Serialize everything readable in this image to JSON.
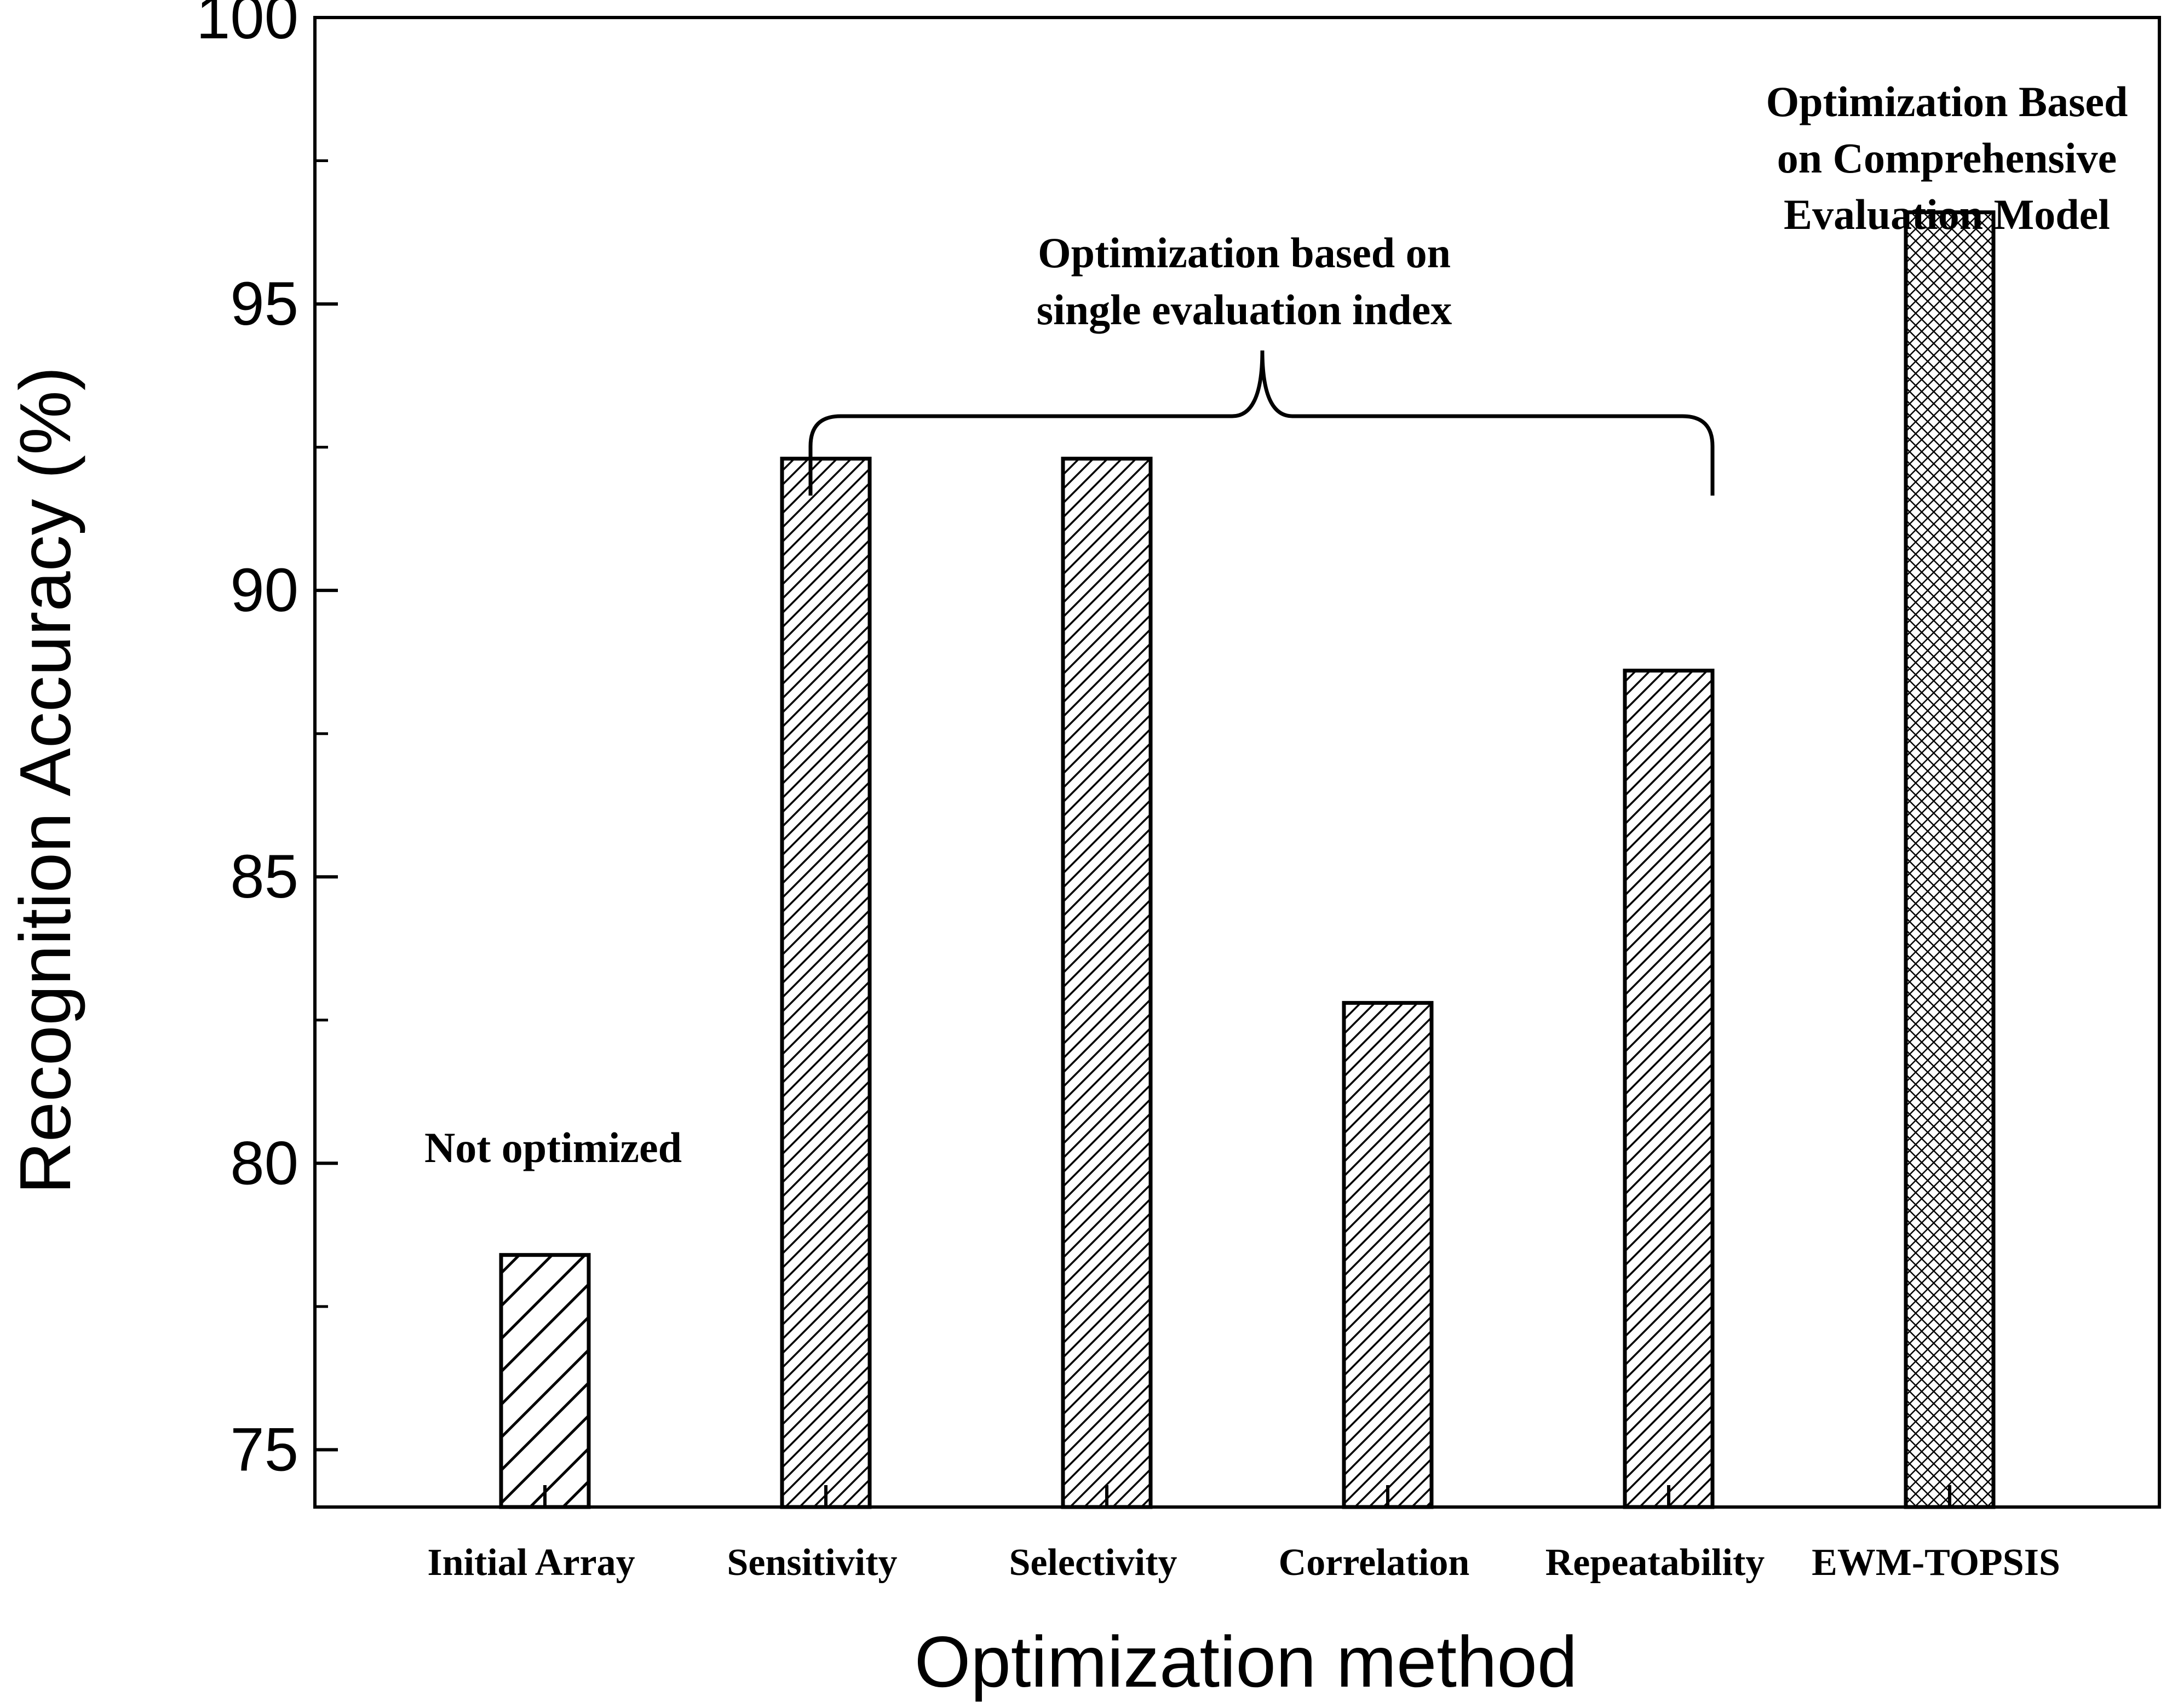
{
  "chart_data": {
    "type": "bar",
    "title": "",
    "xlabel": "Optimization method",
    "ylabel": "Recognition Accuracy (%)",
    "ylim": [
      74,
      100
    ],
    "yticks": [
      75,
      80,
      85,
      90,
      95,
      100
    ],
    "categories": [
      "Initial Array",
      "Sensitivity",
      "Selectivity",
      "Correlation",
      "Repeatability",
      "EWM-TOPSIS"
    ],
    "values": [
      78.4,
      92.3,
      92.3,
      82.8,
      88.6,
      96.6
    ],
    "patterns": [
      "sparse-hatch",
      "dense-hatch",
      "dense-hatch",
      "dense-hatch",
      "dense-hatch",
      "crosshatch"
    ],
    "annotations": {
      "not_optimized": "Not optimized",
      "single_index": [
        "Optimization based on",
        "single evaluation index"
      ],
      "comprehensive": [
        "Optimization Based",
        "on Comprehensive",
        "Evaluation Model"
      ]
    }
  }
}
